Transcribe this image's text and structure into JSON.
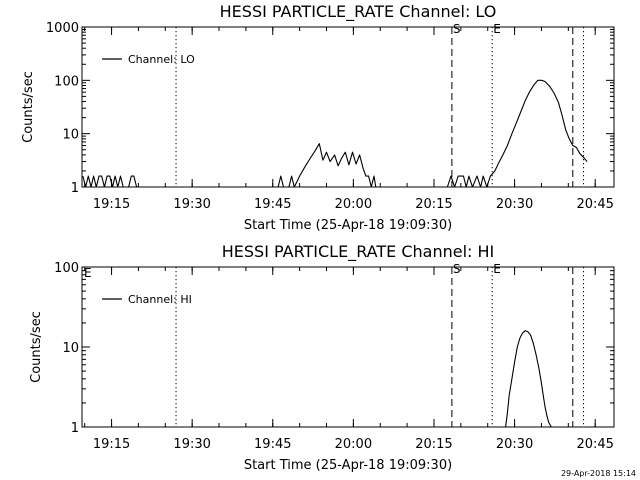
{
  "footer_timestamp": "29-Apr-2018 15:14",
  "chart_data": [
    {
      "type": "line",
      "title": "HESSI PARTICLE_RATE Channel: LO",
      "xlabel": "Start Time (25-Apr-18 19:09:30)",
      "ylabel": "Counts/sec",
      "yscale": "log",
      "ylim": [
        1,
        1000
      ],
      "xlim": [
        "19:09:30",
        "20:48:30"
      ],
      "x_ticks": [
        "19:15",
        "19:30",
        "19:45",
        "20:00",
        "20:15",
        "20:30",
        "20:45"
      ],
      "y_ticks": [
        "1",
        "10",
        "100",
        "1000"
      ],
      "legend": {
        "label": "Channel: LO",
        "placement": "top-left"
      },
      "markers": [
        {
          "time": "19:27:00",
          "style": "dotted",
          "label": ""
        },
        {
          "time": "20:18:20",
          "style": "dashed",
          "label": "S"
        },
        {
          "time": "20:25:50",
          "style": "dotted",
          "label": "E"
        },
        {
          "time": "20:40:50",
          "style": "dashed",
          "label": ""
        },
        {
          "time": "20:42:50",
          "style": "dotted",
          "label": ""
        }
      ],
      "series": [
        {
          "name": "Channel: LO",
          "x": [
            "19:09:40",
            "19:10:10",
            "19:10:40",
            "19:11:10",
            "19:11:40",
            "19:12:10",
            "19:12:40",
            "19:13:10",
            "19:13:40",
            "19:14:10",
            "19:14:40",
            "19:15:10",
            "19:15:40",
            "19:16:10",
            "19:16:40",
            "19:17:10",
            "19:17:40",
            "19:18:10",
            "19:18:40",
            "19:19:10",
            "19:19:40",
            "19:46:00",
            "19:46:30",
            "19:47:00",
            "19:48:00",
            "19:48:30",
            "19:49:00",
            "19:50:00",
            "19:51:00",
            "19:52:00",
            "19:53:00",
            "19:53:40",
            "19:54:20",
            "19:55:00",
            "19:55:40",
            "19:56:30",
            "19:57:10",
            "19:57:50",
            "19:58:30",
            "19:59:10",
            "19:59:50",
            "20:00:30",
            "20:01:10",
            "20:01:50",
            "20:02:20",
            "20:02:50",
            "20:03:20",
            "20:03:50",
            "20:04:10",
            "20:17:30",
            "20:18:10",
            "20:18:50",
            "20:19:30",
            "20:20:30",
            "20:21:00",
            "20:21:30",
            "20:22:10",
            "20:23:00",
            "20:23:40",
            "20:24:10",
            "20:24:50",
            "20:25:30",
            "20:26:20",
            "20:27:00",
            "20:27:50",
            "20:28:40",
            "20:29:30",
            "20:30:20",
            "20:31:10",
            "20:32:00",
            "20:32:50",
            "20:33:40",
            "20:34:20",
            "20:35:00",
            "20:35:40",
            "20:36:30",
            "20:37:20",
            "20:38:10",
            "20:38:50",
            "20:39:30",
            "20:40:10",
            "20:40:50",
            "20:41:30",
            "20:42:10",
            "20:42:50",
            "20:43:30"
          ],
          "y": [
            1.6,
            1.0,
            1.6,
            1.0,
            1.6,
            1.0,
            1.6,
            1.6,
            1.0,
            1.6,
            1.6,
            1.0,
            1.6,
            1.0,
            1.6,
            1.0,
            1.0,
            1.0,
            1.6,
            1.6,
            1.0,
            1.0,
            1.6,
            1.0,
            1.0,
            1.6,
            1.0,
            1.6,
            2.4,
            3.5,
            5.0,
            6.5,
            3.2,
            4.5,
            3.0,
            4.0,
            2.5,
            3.5,
            4.5,
            2.6,
            4.5,
            2.7,
            4.0,
            2.2,
            1.6,
            1.6,
            1.0,
            1.6,
            1.0,
            1.0,
            1.6,
            1.0,
            1.6,
            1.6,
            1.0,
            1.6,
            1.0,
            1.6,
            1.0,
            1.6,
            1.0,
            1.6,
            2.0,
            2.8,
            4.0,
            6.0,
            10,
            16,
            26,
            42,
            62,
            84,
            100,
            100,
            95,
            78,
            58,
            38,
            22,
            12,
            8,
            6,
            5.5,
            4.2,
            3.6,
            3.0
          ]
        }
      ]
    },
    {
      "type": "line",
      "title": "HESSI PARTICLE_RATE Channel: HI",
      "xlabel": "Start Time (25-Apr-18 19:09:30)",
      "ylabel": "Counts/sec",
      "yscale": "log",
      "ylim": [
        1,
        100
      ],
      "xlim": [
        "19:09:30",
        "20:48:30"
      ],
      "x_ticks": [
        "19:15",
        "19:30",
        "19:45",
        "20:00",
        "20:15",
        "20:30",
        "20:45"
      ],
      "y_ticks": [
        "1",
        "10",
        "100"
      ],
      "legend": {
        "label": "Channel: HI",
        "placement": "top-left"
      },
      "markers": [
        {
          "time": "19:27:00",
          "style": "dotted",
          "label": ""
        },
        {
          "time": "20:18:20",
          "style": "dashed",
          "label": "S"
        },
        {
          "time": "20:25:50",
          "style": "dotted",
          "label": "E"
        },
        {
          "time": "20:40:50",
          "style": "dashed",
          "label": ""
        },
        {
          "time": "20:42:50",
          "style": "dotted",
          "label": ""
        }
      ],
      "edge_label": "E",
      "series": [
        {
          "name": "Channel: HI",
          "x": [
            "20:28:20",
            "20:28:40",
            "20:29:00",
            "20:29:30",
            "20:30:00",
            "20:30:30",
            "20:31:00",
            "20:31:30",
            "20:32:00",
            "20:32:30",
            "20:33:00",
            "20:33:30",
            "20:34:00",
            "20:34:30",
            "20:35:00",
            "20:35:20",
            "20:35:40",
            "20:36:00",
            "20:36:20",
            "20:36:50"
          ],
          "y": [
            1.0,
            1.5,
            2.5,
            4.0,
            6.5,
            10,
            13,
            15,
            16,
            15.5,
            14,
            11,
            8,
            5.5,
            3.5,
            2.5,
            1.8,
            1.4,
            1.15,
            1.0
          ]
        }
      ]
    }
  ]
}
